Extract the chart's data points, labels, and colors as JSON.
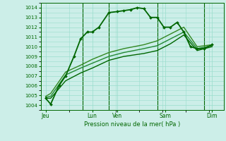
{
  "title": "",
  "xlabel": "Pression niveau de la mer( hPa )",
  "bg_color": "#cceee8",
  "grid_color": "#99ddcc",
  "line_color": "#006600",
  "ylim": [
    1003.5,
    1014.5
  ],
  "yticks": [
    1004,
    1005,
    1006,
    1007,
    1008,
    1009,
    1010,
    1011,
    1012,
    1013,
    1014
  ],
  "xlim": [
    0,
    11.0
  ],
  "day_positions": [
    0.3,
    3.1,
    4.6,
    7.5,
    10.3
  ],
  "day_labels": [
    "Jeu",
    "Lun",
    "Ven",
    "Sam",
    "Dim"
  ],
  "vline_positions": [
    2.5,
    4.1,
    7.0,
    9.8
  ],
  "series": [
    {
      "x": [
        0.3,
        0.6,
        1.1,
        1.5,
        2.0,
        2.4,
        2.8,
        3.1,
        3.5,
        4.1,
        4.6,
        5.0,
        5.4,
        5.8,
        6.2,
        6.6,
        7.0,
        7.4,
        7.8,
        8.2,
        8.6,
        9.0,
        9.4,
        9.8,
        10.3
      ],
      "y": [
        1004.7,
        1004.1,
        1006.0,
        1007.0,
        1009.0,
        1010.8,
        1011.5,
        1011.5,
        1012.0,
        1013.5,
        1013.6,
        1013.7,
        1013.8,
        1014.0,
        1013.9,
        1013.0,
        1013.0,
        1012.0,
        1012.0,
        1012.5,
        1011.5,
        1010.0,
        1009.8,
        1009.8,
        1010.2
      ],
      "color": "#006600",
      "lw": 1.3,
      "marker": "D",
      "ms": 2.0
    },
    {
      "x": [
        0.3,
        0.6,
        1.5,
        2.4,
        3.1,
        4.1,
        5.0,
        6.2,
        7.0,
        7.8,
        8.6,
        9.4,
        10.3
      ],
      "y": [
        1004.7,
        1004.7,
        1006.5,
        1007.3,
        1007.8,
        1008.6,
        1009.0,
        1009.3,
        1009.6,
        1010.3,
        1011.2,
        1009.6,
        1010.0
      ],
      "color": "#006600",
      "lw": 1.0,
      "marker": null,
      "ms": 0
    },
    {
      "x": [
        0.3,
        0.6,
        1.5,
        2.4,
        3.1,
        4.1,
        5.0,
        6.2,
        7.0,
        7.8,
        8.6,
        9.4,
        10.3
      ],
      "y": [
        1004.8,
        1004.9,
        1007.1,
        1007.8,
        1008.3,
        1009.0,
        1009.4,
        1009.8,
        1010.1,
        1010.8,
        1011.5,
        1009.8,
        1010.1
      ],
      "color": "#228833",
      "lw": 1.0,
      "marker": null,
      "ms": 0
    },
    {
      "x": [
        0.3,
        0.6,
        1.5,
        2.4,
        3.1,
        4.1,
        5.0,
        6.2,
        7.0,
        7.8,
        8.6,
        9.4,
        10.3
      ],
      "y": [
        1004.9,
        1005.2,
        1007.4,
        1008.1,
        1008.7,
        1009.4,
        1009.8,
        1010.2,
        1010.6,
        1011.3,
        1012.0,
        1010.0,
        1010.2
      ],
      "color": "#338822",
      "lw": 1.0,
      "marker": null,
      "ms": 0
    }
  ]
}
